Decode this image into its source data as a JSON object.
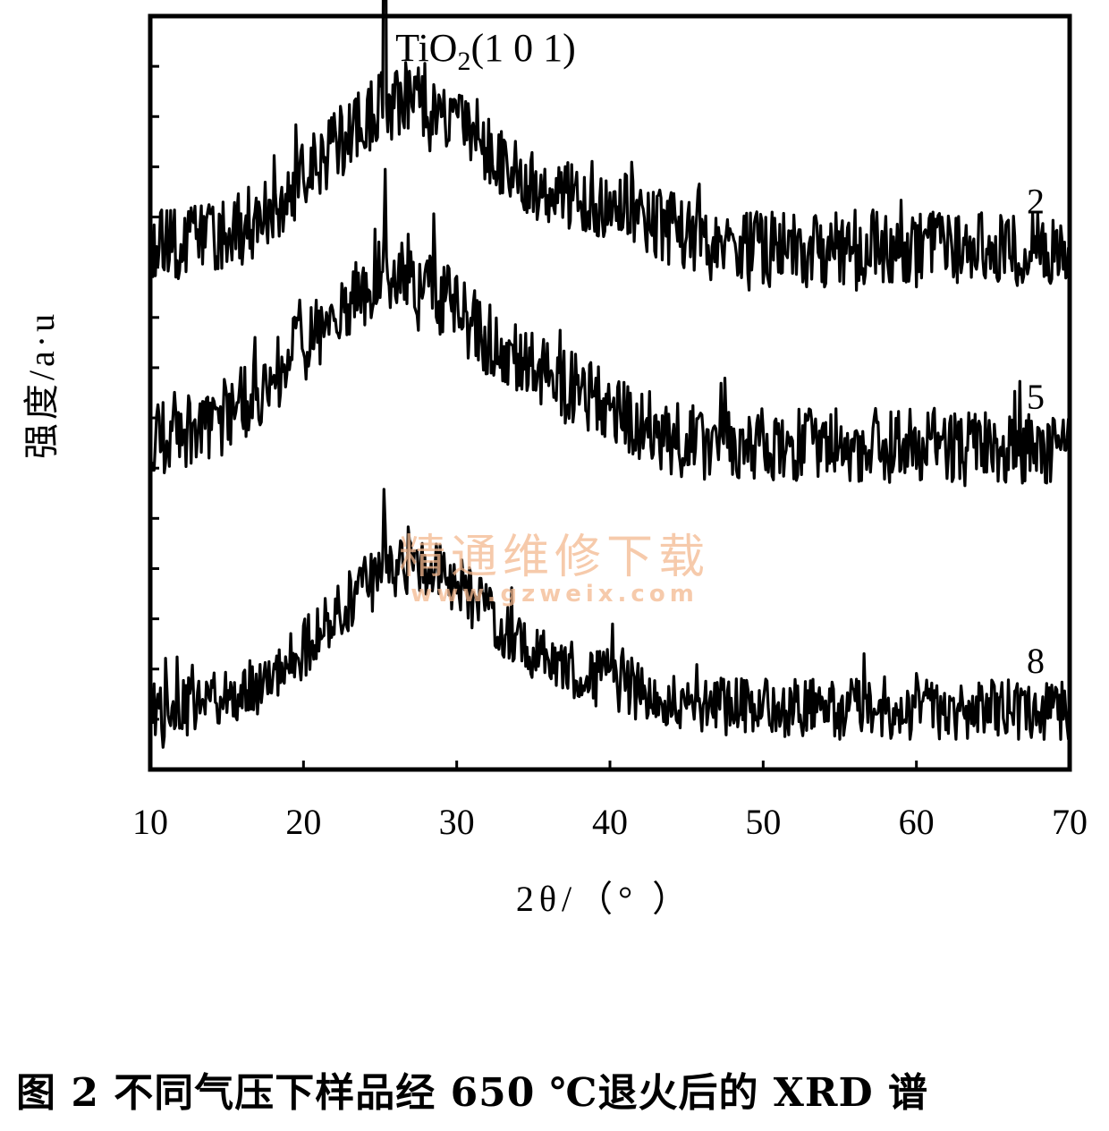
{
  "chart_data": {
    "type": "line",
    "title": "",
    "xlabel": "2θ/（°  ）",
    "ylabel": "强度/a·u",
    "xlim": [
      10,
      70
    ],
    "x_ticks": [
      "10",
      "20",
      "30",
      "40",
      "50",
      "60",
      "70"
    ],
    "y_ticks_labeled": false,
    "grid": false,
    "legend": "none",
    "series": [
      {
        "name": "2",
        "baseline": 0.69,
        "hump_center": 27,
        "hump_width": 8,
        "hump_height": 0.2,
        "noise": 0.05,
        "peak_x": 25.3,
        "peak_height": 0.63,
        "tail_bump": [
          40,
          5,
          0.05
        ]
      },
      {
        "name": "5",
        "baseline": 0.43,
        "hump_center": 26,
        "hump_width": 8.5,
        "hump_height": 0.22,
        "noise": 0.05,
        "peak_x": 25.3,
        "peak_height": 0.18,
        "tail_bump": [
          38,
          5,
          0.04
        ]
      },
      {
        "name": "8",
        "baseline": 0.08,
        "hump_center": 27,
        "hump_width": 7.5,
        "hump_height": 0.19,
        "noise": 0.04,
        "peak_x": 25.3,
        "peak_height": 0.14,
        "tail_bump": [
          39,
          5,
          0.03
        ]
      }
    ],
    "annotations": [
      {
        "text_main": "TiO",
        "text_sub": "2",
        "text_tail": "(1 0 1)",
        "x": 25.3
      }
    ]
  },
  "watermark": {
    "line1": "精通维修下载",
    "line2": "www.gzweix.com",
    "color": "#f4b98f"
  },
  "caption": "图 2    不同气压下样品经 650 ℃退火后的 XRD 谱"
}
